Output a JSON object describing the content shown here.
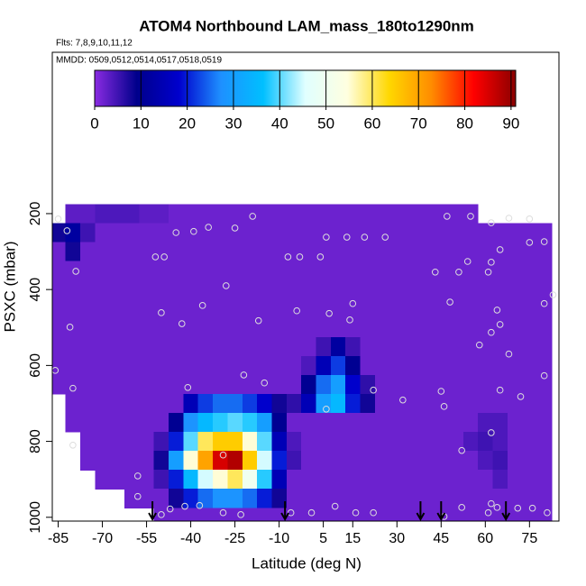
{
  "chart_data": {
    "type": "heatmap",
    "title": "ATOM4 Northbound LAM_mass_180to1290nm",
    "subtitle": "Flts: 7,8,9,10,11,12",
    "annotation": "MMDD: 0509,0512,0514,0517,0518,0519",
    "x_label": "Latitude (deg N)",
    "y_label": "PSXC (mbar)",
    "xlim": [
      -87,
      85
    ],
    "xticks": [
      -85,
      -70,
      -55,
      -40,
      -25,
      -10,
      5,
      15,
      30,
      45,
      60,
      75
    ],
    "ylim": [
      1010,
      -225
    ],
    "yticks": [
      200,
      400,
      600,
      800,
      1000
    ],
    "x": [
      -85,
      -80,
      -75,
      -70,
      -65,
      -60,
      -55,
      -50,
      -45,
      -40,
      -35,
      -30,
      -25,
      -20,
      -15,
      -10,
      -5,
      0,
      5,
      10,
      15,
      20,
      25,
      30,
      35,
      40,
      45,
      50,
      55,
      60,
      65,
      70,
      75,
      80,
      85
    ],
    "y": [
      200,
      250,
      300,
      350,
      400,
      450,
      500,
      550,
      600,
      650,
      700,
      750,
      800,
      850,
      900,
      950,
      1000
    ],
    "z": [
      [
        null,
        3,
        3,
        4,
        4,
        4,
        3,
        3,
        2,
        2,
        2,
        2,
        2,
        2,
        2,
        2,
        2,
        2,
        2,
        2,
        2,
        2,
        2,
        2,
        2,
        2,
        2,
        2,
        2,
        null,
        null,
        null,
        null,
        null,
        null
      ],
      [
        8,
        12,
        5,
        2,
        2,
        2,
        2,
        2,
        2,
        2,
        2,
        2,
        2,
        2,
        2,
        2,
        2,
        2,
        2,
        2,
        2,
        2,
        2,
        2,
        2,
        2,
        2,
        2,
        2,
        2,
        2,
        2,
        2,
        2,
        null
      ],
      [
        2,
        8,
        2,
        2,
        2,
        2,
        2,
        2,
        2,
        2,
        2,
        2,
        2,
        2,
        2,
        2,
        2,
        2,
        2,
        2,
        2,
        2,
        2,
        2,
        2,
        2,
        2,
        2,
        2,
        2,
        2,
        2,
        2,
        2,
        null
      ],
      [
        2,
        2,
        2,
        2,
        2,
        2,
        2,
        2,
        2,
        2,
        2,
        2,
        2,
        2,
        2,
        2,
        2,
        2,
        2,
        2,
        2,
        2,
        2,
        2,
        2,
        2,
        2,
        2,
        2,
        2,
        2,
        2,
        2,
        2,
        null
      ],
      [
        2,
        2,
        2,
        2,
        2,
        2,
        2,
        2,
        2,
        2,
        2,
        2,
        2,
        2,
        2,
        2,
        2,
        2,
        2,
        2,
        2,
        2,
        2,
        2,
        2,
        2,
        2,
        2,
        2,
        2,
        2,
        2,
        2,
        2,
        null
      ],
      [
        2,
        2,
        2,
        2,
        2,
        2,
        2,
        2,
        2,
        2,
        2,
        2,
        2,
        2,
        2,
        2,
        2,
        2,
        2,
        2,
        2,
        2,
        2,
        2,
        2,
        2,
        2,
        2,
        2,
        2,
        2,
        2,
        2,
        2,
        null
      ],
      [
        2,
        2,
        2,
        2,
        2,
        2,
        2,
        2,
        2,
        2,
        2,
        2,
        2,
        2,
        2,
        2,
        2,
        2,
        2,
        2,
        2,
        2,
        2,
        2,
        2,
        2,
        2,
        2,
        2,
        2,
        2,
        2,
        2,
        2,
        null
      ],
      [
        2,
        2,
        2,
        2,
        2,
        2,
        2,
        2,
        2,
        2,
        2,
        2,
        2,
        2,
        2,
        2,
        2,
        2,
        5,
        12,
        5,
        2,
        2,
        2,
        2,
        2,
        2,
        2,
        2,
        2,
        2,
        2,
        2,
        2,
        null
      ],
      [
        2,
        2,
        2,
        2,
        2,
        2,
        2,
        2,
        2,
        2,
        2,
        2,
        2,
        2,
        2,
        2,
        2,
        4,
        15,
        22,
        10,
        2,
        2,
        2,
        2,
        2,
        2,
        2,
        2,
        2,
        2,
        2,
        2,
        2,
        null
      ],
      [
        2,
        2,
        2,
        2,
        2,
        2,
        2,
        2,
        2,
        2,
        2,
        2,
        2,
        2,
        2,
        2,
        2,
        10,
        25,
        30,
        18,
        6,
        2,
        2,
        2,
        2,
        2,
        2,
        2,
        2,
        2,
        2,
        2,
        2,
        null
      ],
      [
        null,
        2,
        2,
        2,
        2,
        2,
        2,
        2,
        2,
        15,
        22,
        25,
        25,
        22,
        18,
        8,
        6,
        15,
        30,
        35,
        20,
        8,
        2,
        2,
        2,
        2,
        2,
        2,
        2,
        2,
        2,
        2,
        2,
        2,
        null
      ],
      [
        null,
        2,
        2,
        2,
        2,
        2,
        2,
        2,
        10,
        28,
        35,
        38,
        40,
        38,
        30,
        10,
        2,
        2,
        2,
        2,
        2,
        2,
        2,
        2,
        2,
        2,
        2,
        2,
        2,
        4,
        4,
        2,
        2,
        2,
        null
      ],
      [
        null,
        null,
        2,
        2,
        2,
        2,
        2,
        5,
        20,
        40,
        60,
        65,
        65,
        55,
        40,
        15,
        4,
        2,
        2,
        2,
        2,
        2,
        2,
        2,
        2,
        2,
        2,
        2,
        4,
        5,
        4,
        2,
        2,
        2,
        null
      ],
      [
        null,
        null,
        2,
        2,
        2,
        2,
        2,
        8,
        30,
        55,
        70,
        85,
        88,
        65,
        45,
        20,
        5,
        2,
        2,
        2,
        2,
        2,
        2,
        2,
        2,
        2,
        2,
        2,
        2,
        4,
        5,
        2,
        2,
        2,
        null
      ],
      [
        null,
        null,
        null,
        2,
        2,
        2,
        2,
        5,
        20,
        35,
        45,
        55,
        60,
        50,
        38,
        15,
        2,
        2,
        2,
        2,
        2,
        2,
        2,
        2,
        2,
        2,
        2,
        2,
        2,
        2,
        4,
        2,
        2,
        2,
        null
      ],
      [
        null,
        null,
        null,
        null,
        null,
        2,
        2,
        2,
        8,
        20,
        25,
        28,
        28,
        25,
        20,
        8,
        2,
        2,
        2,
        2,
        2,
        2,
        2,
        2,
        2,
        2,
        2,
        2,
        2,
        2,
        2,
        2,
        2,
        2,
        null
      ],
      [
        null,
        null,
        null,
        null,
        null,
        null,
        null,
        2,
        2,
        2,
        2,
        2,
        2,
        2,
        2,
        2,
        2,
        2,
        2,
        2,
        2,
        2,
        2,
        2,
        2,
        2,
        2,
        2,
        2,
        2,
        2,
        2,
        2,
        2,
        null
      ]
    ],
    "colorscale": [
      "#8a2be2",
      "#00008b",
      "#0000cd",
      "#1e90ff",
      "#00bfff",
      "#e0ffff",
      "#ffffe0",
      "#ffd700",
      "#ff8c00",
      "#ff0000",
      "#8b0000"
    ],
    "colorbar_lim": [
      0,
      91
    ],
    "colorbar_ticks": [
      0,
      10,
      20,
      30,
      40,
      50,
      60,
      70,
      80,
      90
    ],
    "points": {
      "color": "#dddddd",
      "x": [
        -85,
        -82,
        -79,
        -81,
        -86,
        -80,
        -80,
        -58,
        -58,
        -45,
        -39,
        -34,
        -25,
        -19,
        -52,
        -49,
        -28,
        -36,
        -43,
        -50,
        -17,
        -41,
        -22,
        -15,
        -29,
        -37,
        -42,
        -47,
        -50,
        -29,
        -23,
        -7,
        -3,
        -4,
        6,
        4,
        13,
        19,
        26,
        15,
        7,
        14,
        22,
        32,
        6,
        45,
        46,
        47,
        55,
        62,
        68,
        75,
        80,
        75,
        65,
        62,
        61,
        54,
        51,
        43,
        48,
        64,
        65,
        62,
        58,
        68,
        80,
        83,
        65,
        72,
        80,
        62,
        52,
        46,
        52,
        62,
        61,
        64,
        71,
        76,
        81,
        -6,
        1,
        9,
        16,
        22
      ],
      "y": [
        214,
        245,
        352,
        499,
        613,
        660,
        810,
        891,
        945,
        250,
        247,
        236,
        238,
        207,
        314,
        314,
        390,
        442,
        490,
        461,
        482,
        658,
        625,
        646,
        836,
        969,
        971,
        978,
        993,
        988,
        993,
        314,
        314,
        456,
        262,
        314,
        262,
        262,
        262,
        437,
        463,
        480,
        665,
        691,
        715,
        668,
        708,
        207,
        207,
        224,
        212,
        214,
        274,
        276,
        295,
        328,
        354,
        326,
        354,
        354,
        433,
        454,
        492,
        513,
        546,
        570,
        437,
        414,
        665,
        682,
        627,
        777,
        824,
        998,
        974,
        964,
        988,
        974,
        976,
        976,
        988,
        988,
        988,
        971,
        988,
        988
      ]
    },
    "arrows": {
      "color": "#000000",
      "x": [
        -53,
        -8,
        38,
        45,
        67
      ]
    }
  }
}
